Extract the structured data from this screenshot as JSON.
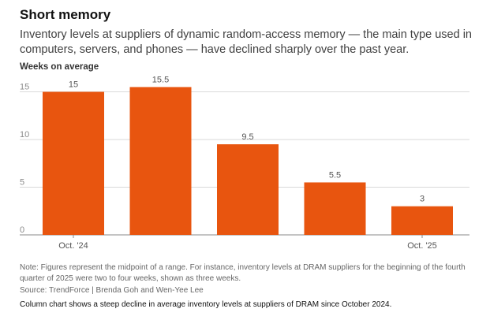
{
  "header": {
    "title": "Short memory",
    "subtitle": "Inventory levels at suppliers of dynamic random-access memory — the main type used in computers, servers, and phones — have declined sharply over the past year."
  },
  "chart_data": {
    "type": "bar",
    "ylabel": "Weeks on average",
    "categories": [
      "Oct. '24",
      "",
      "",
      "",
      "Oct. '25"
    ],
    "values": [
      15,
      15.5,
      9.5,
      5.5,
      3
    ],
    "data_labels": [
      "15",
      "15.5",
      "9.5",
      "5.5",
      "3"
    ],
    "ylim": [
      0,
      15.5
    ],
    "yticks": [
      0,
      5,
      10,
      15
    ],
    "ytick_labels": [
      "0",
      "5",
      "10",
      "15"
    ],
    "grid": true,
    "bar_color": "#e8550f"
  },
  "footer": {
    "note": "Note: Figures represent the midpoint of a range. For instance, inventory levels at DRAM suppliers for the beginning of the fourth quarter of 2025 were two to four weeks, shown as three weeks.",
    "source": "Source: TrendForce | Brenda Goh and Wen-Yee Lee",
    "description": "Column chart shows a steep decline in average inventory levels at suppliers of DRAM since October 2024."
  }
}
